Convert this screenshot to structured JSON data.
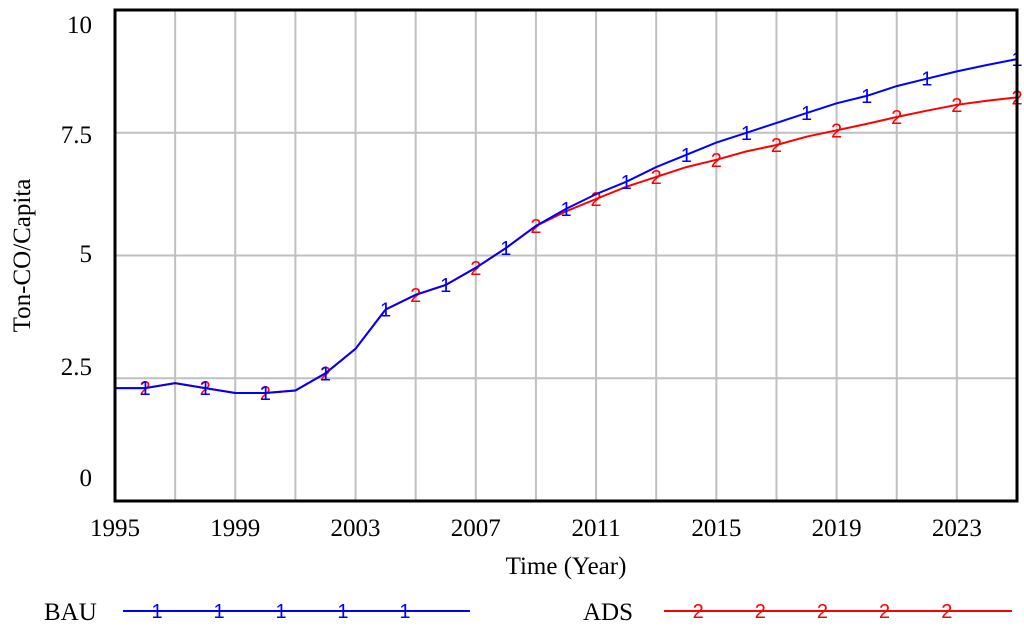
{
  "chart_data": {
    "type": "line",
    "xlabel": "Time (Year)",
    "ylabel": "Ton-CO/Capita",
    "xlim": [
      1995,
      2025
    ],
    "ylim": [
      0,
      10
    ],
    "x_ticks": [
      "1995",
      "1999",
      "2003",
      "2007",
      "2011",
      "2015",
      "2019",
      "2023"
    ],
    "x_tick_values": [
      1995,
      1999,
      2003,
      2007,
      2011,
      2015,
      2019,
      2023
    ],
    "y_ticks": [
      "0",
      "2.5",
      "5",
      "7.5",
      "10"
    ],
    "y_tick_values": [
      0,
      2.5,
      5,
      7.5,
      10
    ],
    "grid": true,
    "legend_position": "bottom",
    "series": [
      {
        "name": "BAU",
        "marker": "1",
        "color": "#0000ff",
        "x": [
          1995,
          1996,
          1997,
          1998,
          1999,
          2000,
          2001,
          2002,
          2003,
          2004,
          2005,
          2006,
          2007,
          2008,
          2009,
          2010,
          2011,
          2012,
          2013,
          2014,
          2015,
          2016,
          2017,
          2018,
          2019,
          2020,
          2021,
          2022,
          2023,
          2024,
          2025
        ],
        "values": [
          2.3,
          2.3,
          2.4,
          2.3,
          2.2,
          2.2,
          2.25,
          2.6,
          3.1,
          3.9,
          4.2,
          4.4,
          4.75,
          5.15,
          5.6,
          5.95,
          6.25,
          6.5,
          6.8,
          7.05,
          7.3,
          7.5,
          7.7,
          7.9,
          8.1,
          8.25,
          8.45,
          8.6,
          8.75,
          8.88,
          9.0
        ],
        "marker_x": [
          1996,
          1998,
          2000,
          2002,
          2004,
          2006,
          2008,
          2010,
          2012,
          2014,
          2016,
          2018,
          2020,
          2022,
          2025
        ]
      },
      {
        "name": "ADS",
        "marker": "2",
        "color": "#ff0000",
        "x": [
          1995,
          1996,
          1997,
          1998,
          1999,
          2000,
          2001,
          2002,
          2003,
          2004,
          2005,
          2006,
          2007,
          2008,
          2009,
          2010,
          2011,
          2012,
          2013,
          2014,
          2015,
          2016,
          2017,
          2018,
          2019,
          2020,
          2021,
          2022,
          2023,
          2024,
          2025
        ],
        "values": [
          2.3,
          2.3,
          2.4,
          2.3,
          2.2,
          2.2,
          2.25,
          2.6,
          3.1,
          3.9,
          4.2,
          4.4,
          4.75,
          5.15,
          5.6,
          5.9,
          6.15,
          6.4,
          6.6,
          6.8,
          6.95,
          7.12,
          7.25,
          7.42,
          7.55,
          7.68,
          7.82,
          7.95,
          8.07,
          8.15,
          8.22
        ],
        "marker_x": [
          1996,
          1998,
          2000,
          2002,
          2005,
          2007,
          2009,
          2011,
          2013,
          2015,
          2017,
          2019,
          2021,
          2023,
          2025
        ]
      }
    ]
  }
}
